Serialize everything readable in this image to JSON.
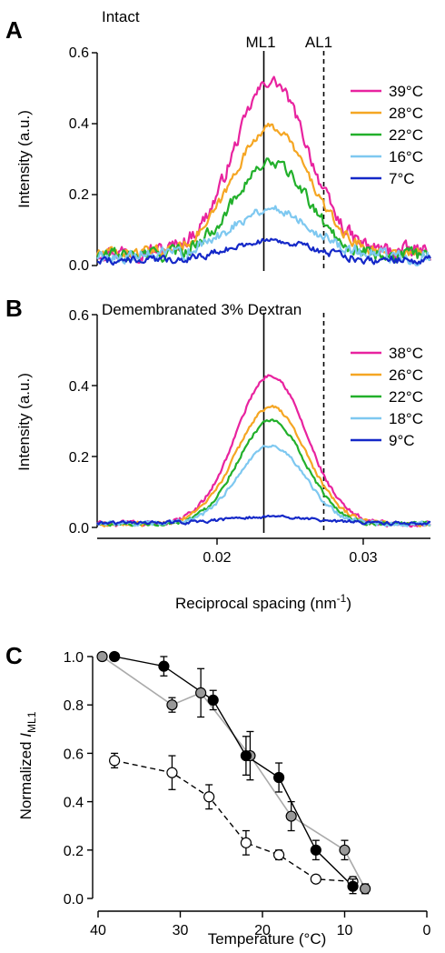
{
  "chart_data": [
    {
      "type": "line",
      "panel_label": "A",
      "title": "Intact",
      "xlabel": "",
      "ylabel": "Intensity (a.u.)",
      "xlim": [
        0.0118,
        0.0346
      ],
      "ylim": [
        0,
        0.6
      ],
      "yticks": [
        "0.0",
        "0.2",
        "0.4",
        "0.6"
      ],
      "reference_lines": [
        {
          "label": "ML1",
          "x": 0.0232,
          "style": "solid"
        },
        {
          "label": "AL1",
          "x": 0.0273,
          "style": "dashed"
        }
      ],
      "legend_position": "right",
      "series": [
        {
          "name": "39°C",
          "color": "#e8239f",
          "peak": 0.52,
          "width": 0.0025,
          "baseline": 0.04,
          "noise": 0.035
        },
        {
          "name": "28°C",
          "color": "#f5a623",
          "peak": 0.39,
          "width": 0.0026,
          "baseline": 0.035,
          "noise": 0.025
        },
        {
          "name": "22°C",
          "color": "#22b02b",
          "peak": 0.29,
          "width": 0.0025,
          "baseline": 0.03,
          "noise": 0.03
        },
        {
          "name": "16°C",
          "color": "#7ec8f0",
          "peak": 0.16,
          "width": 0.0028,
          "baseline": 0.025,
          "noise": 0.03
        },
        {
          "name": "7°C",
          "color": "#1428c8",
          "peak": 0.07,
          "width": 0.0028,
          "baseline": 0.015,
          "noise": 0.018
        }
      ]
    },
    {
      "type": "line",
      "panel_label": "B",
      "title": "Demembranated 3% Dextran",
      "xlabel": "Reciprocal spacing (nm-1)",
      "ylabel": "Intensity (a.u.)",
      "xlim": [
        0.0118,
        0.0346
      ],
      "ylim": [
        0,
        0.6
      ],
      "xticks": [
        0.02,
        0.03
      ],
      "xtick_labels": [
        "0.02",
        "0.03"
      ],
      "yticks": [
        "0.0",
        "0.2",
        "0.4",
        "0.6"
      ],
      "reference_lines": [
        {
          "label": "",
          "x": 0.0232,
          "style": "solid"
        },
        {
          "label": "",
          "x": 0.0273,
          "style": "dashed"
        }
      ],
      "legend_position": "right",
      "series": [
        {
          "name": "38°C",
          "color": "#e8239f",
          "peak": 0.43,
          "width": 0.0024,
          "baseline": 0.01,
          "noise": 0.012
        },
        {
          "name": "26°C",
          "color": "#f5a623",
          "peak": 0.34,
          "width": 0.0024,
          "baseline": 0.01,
          "noise": 0.01
        },
        {
          "name": "22°C",
          "color": "#22b02b",
          "peak": 0.3,
          "width": 0.0023,
          "baseline": 0.01,
          "noise": 0.01
        },
        {
          "name": "18°C",
          "color": "#7ec8f0",
          "peak": 0.23,
          "width": 0.0023,
          "baseline": 0.01,
          "noise": 0.01
        },
        {
          "name": "9°C",
          "color": "#1428c8",
          "peak": 0.03,
          "width": 0.003,
          "baseline": 0.012,
          "noise": 0.008
        }
      ]
    },
    {
      "type": "scatter",
      "panel_label": "C",
      "xlabel": "Temperature (°C)",
      "ylabel_prefix": "Normalized ",
      "ylabel_symbol": "I",
      "ylabel_subscript": "ML1",
      "xlim": [
        40,
        0
      ],
      "ylim": [
        0,
        1.0
      ],
      "xticks": [
        40,
        30,
        20,
        10,
        0
      ],
      "xtick_labels": [
        "40",
        "30",
        "20",
        "10",
        "0"
      ],
      "yticks": [
        0,
        0.2,
        0.4,
        0.6,
        0.8,
        1.0
      ],
      "ytick_labels": [
        "0.0",
        "0.2",
        "0.4",
        "0.6",
        "0.8",
        "1.0"
      ],
      "series": [
        {
          "name": "",
          "marker_fill": "#000000",
          "line_color": "#000000",
          "line_style": "solid",
          "x": [
            38,
            32,
            26,
            22,
            18,
            13.5,
            9
          ],
          "y": [
            1.0,
            0.96,
            0.82,
            0.59,
            0.5,
            0.2,
            0.05
          ],
          "err": [
            0.0,
            0.04,
            0.04,
            0.08,
            0.06,
            0.04,
            0.03
          ]
        },
        {
          "name": "",
          "marker_fill": "#999999",
          "line_color": "#aaaaaa",
          "line_style": "solid",
          "x": [
            39.5,
            31,
            27.5,
            21.5,
            16.5,
            10,
            7.5
          ],
          "y": [
            1.0,
            0.8,
            0.85,
            0.59,
            0.34,
            0.2,
            0.04
          ],
          "err": [
            0.0,
            0.03,
            0.1,
            0.1,
            0.06,
            0.04,
            0.02
          ]
        },
        {
          "name": "",
          "marker_fill": "#ffffff",
          "line_color": "#000000",
          "line_style": "dashed",
          "x": [
            38,
            31,
            26.5,
            22,
            18,
            13.5,
            9
          ],
          "y": [
            0.57,
            0.52,
            0.42,
            0.23,
            0.18,
            0.08,
            0.07
          ],
          "err": [
            0.03,
            0.07,
            0.05,
            0.05,
            0.02,
            0.01,
            0.02
          ]
        }
      ]
    }
  ]
}
